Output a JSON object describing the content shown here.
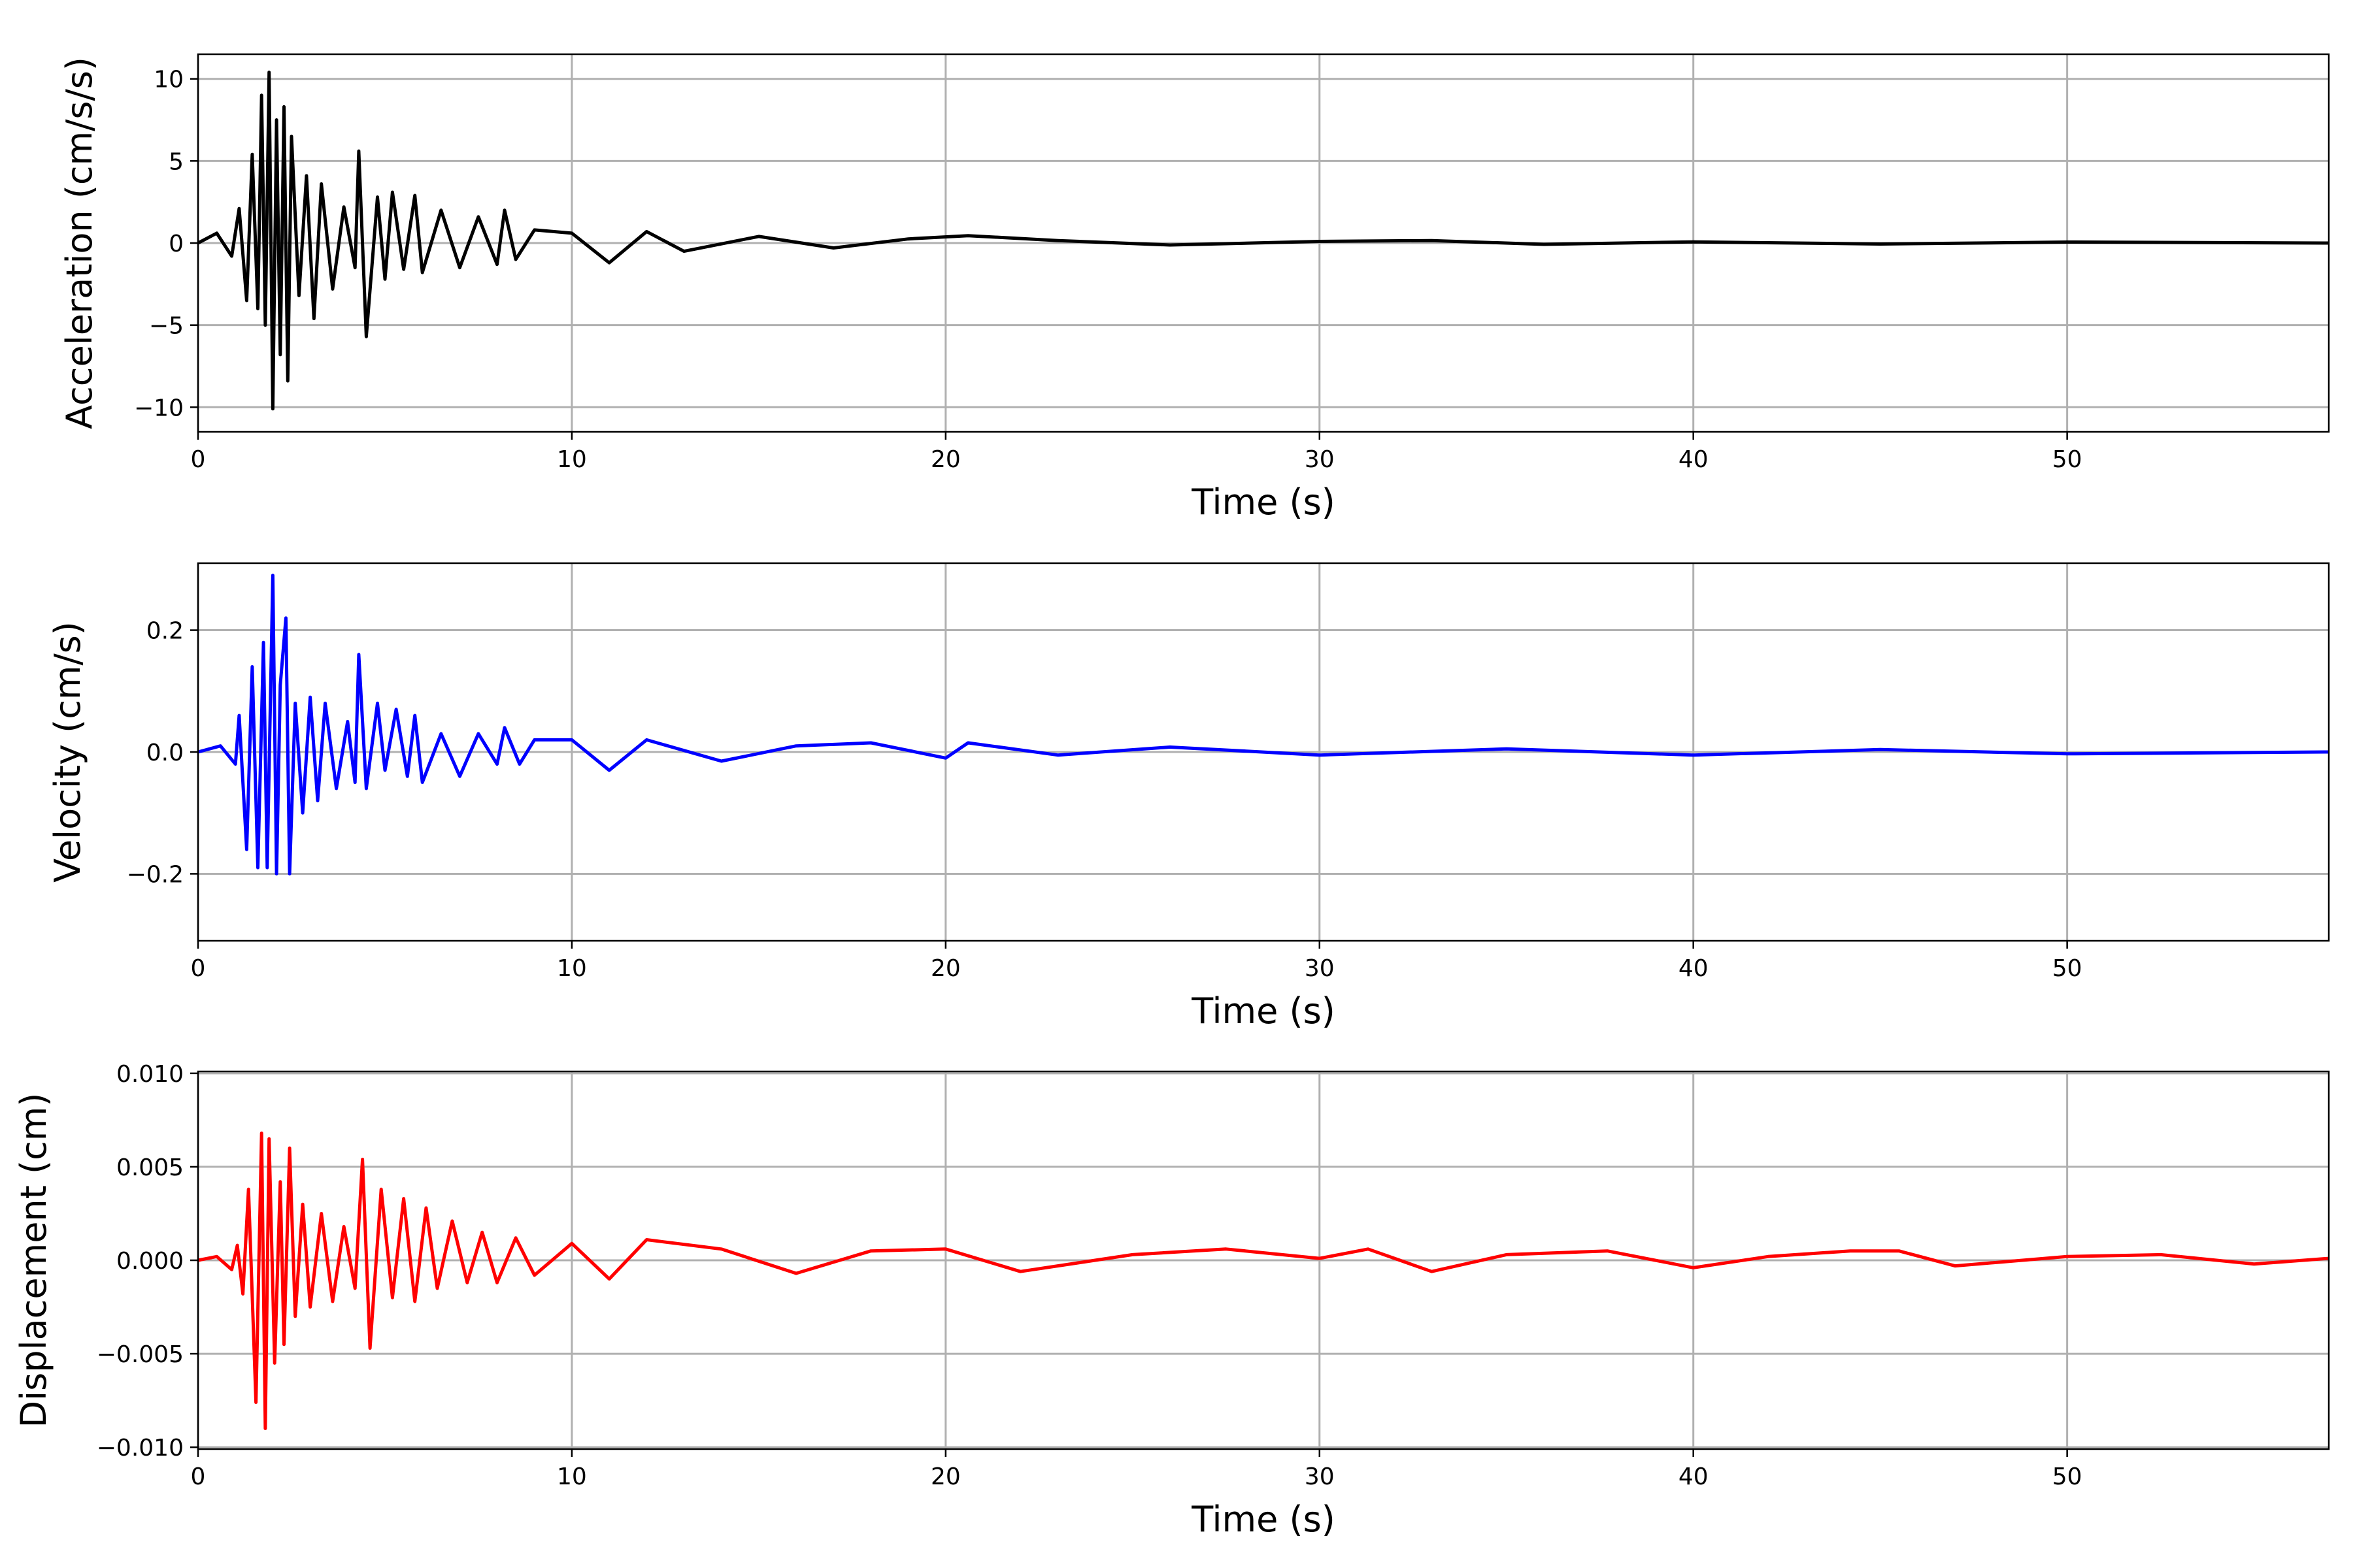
{
  "chart_data": [
    {
      "type": "line",
      "xlabel": "Time (s)",
      "ylabel": "Acceleration (cm/s/s)",
      "xlim": [
        0,
        57
      ],
      "ylim": [
        -11.5,
        11.5
      ],
      "xticks": [
        0,
        10,
        20,
        30,
        40,
        50
      ],
      "xtick_labels": [
        "0",
        "10",
        "20",
        "30",
        "40",
        "50"
      ],
      "yticks": [
        10,
        5,
        0,
        -5,
        -10
      ],
      "ytick_labels": [
        "10",
        "5",
        "0",
        "−5",
        "−10"
      ],
      "grid": true,
      "series": [
        {
          "color": "#000000",
          "x": [
            0,
            0.5,
            0.9,
            1.1,
            1.3,
            1.45,
            1.6,
            1.7,
            1.8,
            1.9,
            2.0,
            2.1,
            2.2,
            2.3,
            2.4,
            2.5,
            2.7,
            2.9,
            3.1,
            3.3,
            3.6,
            3.9,
            4.2,
            4.3,
            4.5,
            4.8,
            5.0,
            5.2,
            5.5,
            5.8,
            6.0,
            6.5,
            7.0,
            7.5,
            8.0,
            8.2,
            8.5,
            9.0,
            10.0,
            11.0,
            12.0,
            13.0,
            15.0,
            17.0,
            19.0,
            20.6,
            23.0,
            26.0,
            30.0,
            33.0,
            36.0,
            40.0,
            45.0,
            50.0,
            57.0
          ],
          "y": [
            0,
            0.6,
            -0.8,
            2.1,
            -3.5,
            5.4,
            -4.0,
            9.0,
            -5.0,
            10.4,
            -10.1,
            7.5,
            -6.8,
            8.3,
            -8.4,
            6.5,
            -3.2,
            4.1,
            -4.6,
            3.6,
            -2.8,
            2.2,
            -1.5,
            5.6,
            -5.7,
            2.8,
            -2.2,
            3.1,
            -1.6,
            2.9,
            -1.8,
            2.0,
            -1.5,
            1.6,
            -1.3,
            2.0,
            -1.0,
            0.8,
            0.6,
            -1.2,
            0.7,
            -0.5,
            0.4,
            -0.3,
            0.25,
            0.45,
            0.15,
            -0.12,
            0.1,
            0.15,
            -0.08,
            0.07,
            -0.06,
            0.06,
            0.0
          ]
        }
      ]
    },
    {
      "type": "line",
      "xlabel": "Time (s)",
      "ylabel": "Velocity (cm/s)",
      "xlim": [
        0,
        57
      ],
      "ylim": [
        -0.31,
        0.31
      ],
      "xticks": [
        0,
        10,
        20,
        30,
        40,
        50
      ],
      "xtick_labels": [
        "0",
        "10",
        "20",
        "30",
        "40",
        "50"
      ],
      "yticks": [
        0.2,
        0.0,
        -0.2
      ],
      "ytick_labels": [
        "0.2",
        "0.0",
        "−0.2"
      ],
      "grid": true,
      "series": [
        {
          "color": "#0000ff",
          "x": [
            0,
            0.6,
            1.0,
            1.1,
            1.3,
            1.45,
            1.6,
            1.75,
            1.85,
            2.0,
            2.1,
            2.2,
            2.35,
            2.45,
            2.6,
            2.8,
            3.0,
            3.2,
            3.4,
            3.7,
            4.0,
            4.2,
            4.3,
            4.5,
            4.8,
            5.0,
            5.3,
            5.6,
            5.8,
            6.0,
            6.5,
            7.0,
            7.5,
            8.0,
            8.2,
            8.6,
            9.0,
            10.0,
            11.0,
            12.0,
            14.0,
            16.0,
            18.0,
            20.0,
            20.6,
            23.0,
            26.0,
            30.0,
            35.0,
            40.0,
            45.0,
            50.0,
            57.0
          ],
          "y": [
            0,
            0.01,
            -0.02,
            0.06,
            -0.16,
            0.14,
            -0.19,
            0.18,
            -0.19,
            0.29,
            -0.2,
            0.11,
            0.22,
            -0.2,
            0.08,
            -0.1,
            0.09,
            -0.08,
            0.08,
            -0.06,
            0.05,
            -0.05,
            0.16,
            -0.06,
            0.08,
            -0.03,
            0.07,
            -0.04,
            0.06,
            -0.05,
            0.03,
            -0.04,
            0.03,
            -0.02,
            0.04,
            -0.02,
            0.02,
            0.02,
            -0.03,
            0.02,
            -0.015,
            0.01,
            0.015,
            -0.01,
            0.015,
            -0.005,
            0.008,
            -0.005,
            0.005,
            -0.005,
            0.004,
            -0.003,
            0.0
          ]
        }
      ]
    },
    {
      "type": "line",
      "xlabel": "Time (s)",
      "ylabel": "Displacement (cm)",
      "xlim": [
        0,
        57
      ],
      "ylim": [
        -0.0101,
        0.0101
      ],
      "xticks": [
        0,
        10,
        20,
        30,
        40,
        50
      ],
      "xtick_labels": [
        "0",
        "10",
        "20",
        "30",
        "40",
        "50"
      ],
      "yticks": [
        0.01,
        0.005,
        0.0,
        -0.005,
        -0.01
      ],
      "ytick_labels": [
        "0.010",
        "0.005",
        "0.000",
        "−0.005",
        "−0.010"
      ],
      "grid": true,
      "series": [
        {
          "color": "#ff0000",
          "x": [
            0,
            0.5,
            0.9,
            1.05,
            1.2,
            1.35,
            1.55,
            1.7,
            1.8,
            1.9,
            2.05,
            2.2,
            2.3,
            2.45,
            2.6,
            2.8,
            3.0,
            3.3,
            3.6,
            3.9,
            4.2,
            4.4,
            4.6,
            4.9,
            5.2,
            5.5,
            5.8,
            6.1,
            6.4,
            6.8,
            7.2,
            7.6,
            8.0,
            8.5,
            9.0,
            10.0,
            11.0,
            12.0,
            14.0,
            16.0,
            18.0,
            20.0,
            22.0,
            25.0,
            27.5,
            30.0,
            31.3,
            33.0,
            35.0,
            37.7,
            40.0,
            42.0,
            44.2,
            45.5,
            47.0,
            50.0,
            52.5,
            55.0,
            57.0
          ],
          "y": [
            0,
            0.0002,
            -0.0005,
            0.0008,
            -0.0018,
            0.0038,
            -0.0076,
            0.0068,
            -0.009,
            0.0065,
            -0.0055,
            0.0042,
            -0.0045,
            0.006,
            -0.003,
            0.003,
            -0.0025,
            0.0025,
            -0.0022,
            0.0018,
            -0.0015,
            0.0054,
            -0.0047,
            0.0038,
            -0.002,
            0.0033,
            -0.0022,
            0.0028,
            -0.0015,
            0.0021,
            -0.0012,
            0.0015,
            -0.0012,
            0.0012,
            -0.0008,
            0.0009,
            -0.001,
            0.0011,
            0.0006,
            -0.0007,
            0.0005,
            0.0006,
            -0.0006,
            0.0003,
            0.0006,
            0.0001,
            0.0006,
            -0.0006,
            0.0003,
            0.0005,
            -0.0004,
            0.0002,
            0.0005,
            0.0005,
            -0.0003,
            0.0002,
            0.0003,
            -0.0002,
            0.0001
          ]
        }
      ]
    }
  ]
}
